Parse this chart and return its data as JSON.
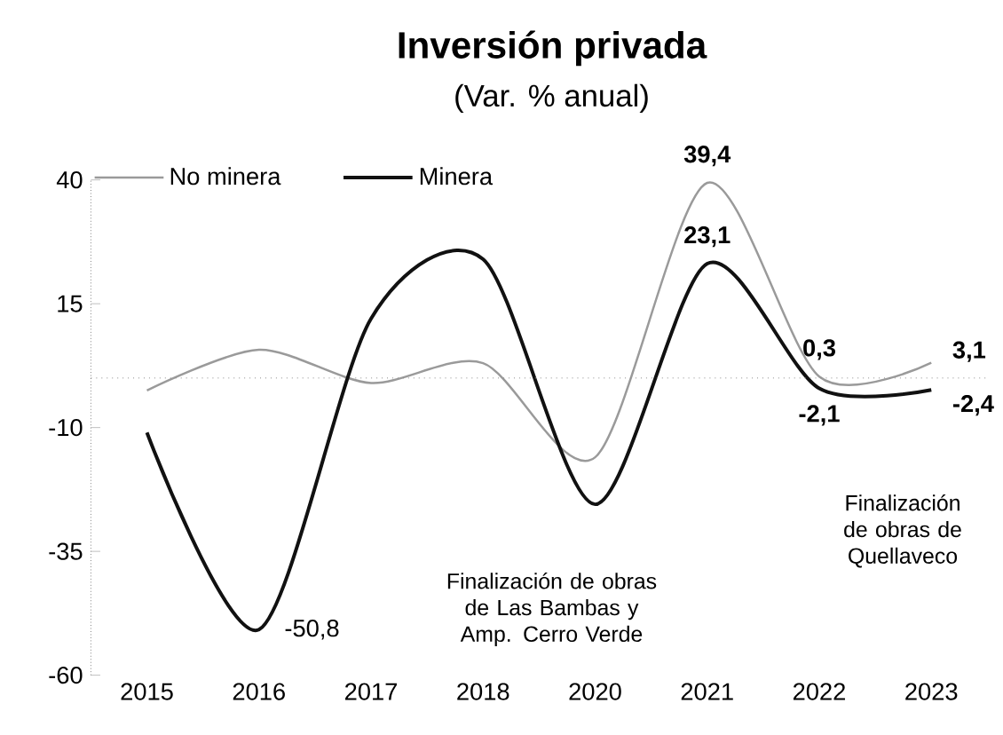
{
  "chart_data": {
    "type": "line",
    "title": "Inversión privada",
    "subtitle": "(Var. % anual)",
    "categories": [
      "2015",
      "2016",
      "2017",
      "2018",
      "2020",
      "2021",
      "2022",
      "2023"
    ],
    "series": [
      {
        "name": "No minera",
        "color": "#9a9a9a",
        "values": [
          -2.5,
          5.7,
          -1,
          3,
          -16,
          39.4,
          0.3,
          3.1
        ],
        "value_labels": [
          null,
          null,
          null,
          null,
          null,
          "39,4",
          "0,3",
          "3,1"
        ]
      },
      {
        "name": "Minera",
        "color": "#111111",
        "values": [
          -11,
          -50.8,
          12,
          24,
          -25.5,
          23.1,
          -2.1,
          -2.4
        ],
        "value_labels": [
          null,
          "-50,8",
          null,
          null,
          null,
          "23,1",
          "-2,1",
          "-2,4"
        ]
      }
    ],
    "ylim": [
      -60,
      40
    ],
    "yticks": [
      -60,
      -35,
      -10,
      15,
      40
    ],
    "ref_lines": [
      {
        "axis": "y",
        "value": 0,
        "color": "#888888",
        "line_style": "dotted"
      }
    ],
    "annotations": [
      "Finalización de obras de Las Bambas y Amp. Cerro Verde",
      "Finalización de obras de Quellaveco"
    ],
    "legend": "top left",
    "grid": false,
    "marker": "none",
    "line_style": "solid"
  }
}
